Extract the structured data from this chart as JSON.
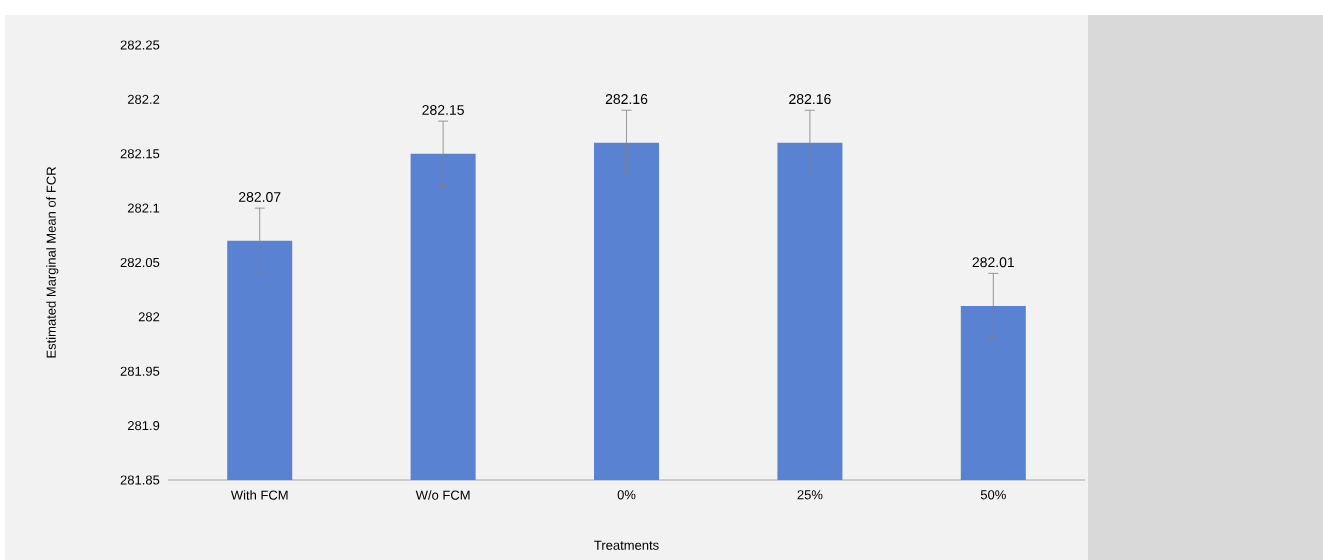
{
  "chart_data": {
    "type": "bar",
    "xlabel": "Treatments",
    "ylabel": "Estimated Marginal Mean of FCR",
    "categories": [
      "With FCM",
      "W/o FCM",
      "0%",
      "25%",
      "50%"
    ],
    "values": [
      282.07,
      282.15,
      282.16,
      282.16,
      282.01
    ],
    "errors": [
      0.03,
      0.03,
      0.03,
      0.03,
      0.03
    ],
    "color": "#5a82d2",
    "ylim": [
      281.85,
      282.25
    ],
    "yticks": [
      281.85,
      281.9,
      281.95,
      282,
      282.05,
      282.1,
      282.15,
      282.2,
      282.25
    ],
    "data_labels": true,
    "grid": false
  }
}
